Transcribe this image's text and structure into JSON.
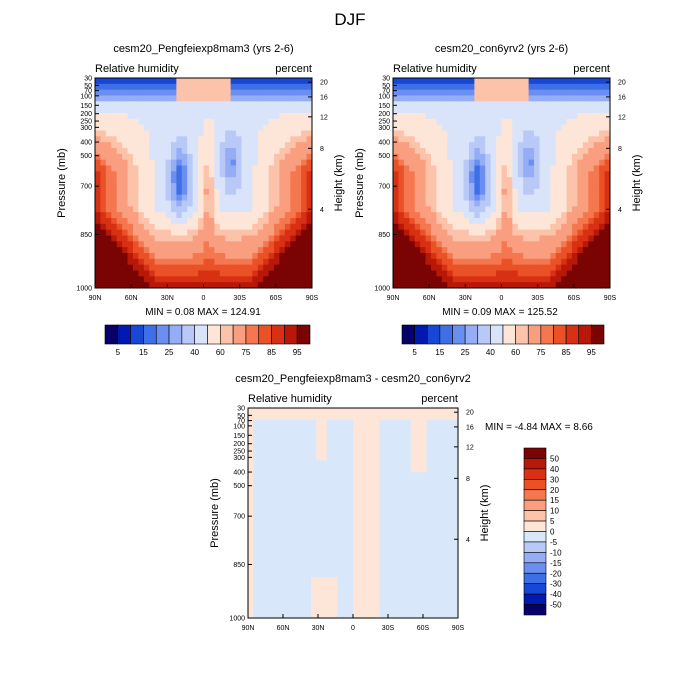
{
  "page_title": "DJF",
  "colors": {
    "main_scale": [
      "#08006a",
      "#0019b3",
      "#1747d6",
      "#3f6fe6",
      "#6b8ff0",
      "#94adf4",
      "#b8c8f7",
      "#d9e4fb",
      "#fde6d8",
      "#fcc3aa",
      "#f99e7f",
      "#f4774f",
      "#ea5127",
      "#d73013",
      "#b81808",
      "#7a0403"
    ],
    "diff_scale": [
      "#08006a",
      "#0019b3",
      "#1747d6",
      "#3f6fe6",
      "#6b8ff0",
      "#94adf4",
      "#b8c8f7",
      "#d9e7fb",
      "#fde6d8",
      "#fcc3aa",
      "#f99e7f",
      "#f4774f",
      "#ea5127",
      "#d73013",
      "#b81808",
      "#7a0403"
    ]
  },
  "chart_data": [
    {
      "type": "heatmap",
      "title": "cesm20_Pengfeiexp8mam3 (yrs 2-6)",
      "left_label": "Relative humidity",
      "right_label": "percent",
      "ylabel": "Pressure (mb)",
      "y2label": "Height (km)",
      "x_ticks": [
        "90N",
        "60N",
        "30N",
        "0",
        "30S",
        "60S",
        "90S"
      ],
      "y_ticks": [
        "30",
        "50",
        "70",
        "100",
        "150",
        "200",
        "250",
        "300",
        "400",
        "500",
        "700",
        "850",
        "1000"
      ],
      "y2_ticks": [
        "20",
        "16",
        "12",
        "8",
        "4"
      ],
      "min_max": "MIN =   0.08   MAX = 124.91",
      "colorbar_labels": [
        "5",
        "15",
        "25",
        "40",
        "60",
        "75",
        "85",
        "95"
      ]
    },
    {
      "type": "heatmap",
      "title": "cesm20_con6yrv2 (yrs 2-6)",
      "left_label": "Relative humidity",
      "right_label": "percent",
      "ylabel": "Pressure (mb)",
      "y2label": "Height (km)",
      "x_ticks": [
        "90N",
        "60N",
        "30N",
        "0",
        "30S",
        "60S",
        "90S"
      ],
      "y_ticks": [
        "30",
        "50",
        "70",
        "100",
        "150",
        "200",
        "250",
        "300",
        "400",
        "500",
        "700",
        "850",
        "1000"
      ],
      "y2_ticks": [
        "20",
        "16",
        "12",
        "8",
        "4"
      ],
      "min_max": "MIN =   0.09   MAX = 125.52",
      "colorbar_labels": [
        "5",
        "15",
        "25",
        "40",
        "60",
        "75",
        "85",
        "95"
      ]
    },
    {
      "type": "heatmap",
      "title": "cesm20_Pengfeiexp8mam3 - cesm20_con6yrv2",
      "left_label": "Relative humidity",
      "right_label": "percent",
      "ylabel": "Pressure (mb)",
      "y2label": "Height (km)",
      "x_ticks": [
        "90N",
        "60N",
        "30N",
        "0",
        "30S",
        "60S",
        "90S"
      ],
      "y_ticks": [
        "30",
        "50",
        "70",
        "100",
        "150",
        "200",
        "250",
        "300",
        "400",
        "500",
        "700",
        "850",
        "1000"
      ],
      "y2_ticks": [
        "20",
        "16",
        "12",
        "8",
        "4"
      ],
      "min_max": "MIN =  -4.84   MAX =   8.66",
      "colorbar_labels": [
        "50",
        "40",
        "30",
        "20",
        "15",
        "10",
        "5",
        "0",
        "-5",
        "-10",
        "-15",
        "-20",
        "-30",
        "-40",
        "-50"
      ]
    }
  ]
}
